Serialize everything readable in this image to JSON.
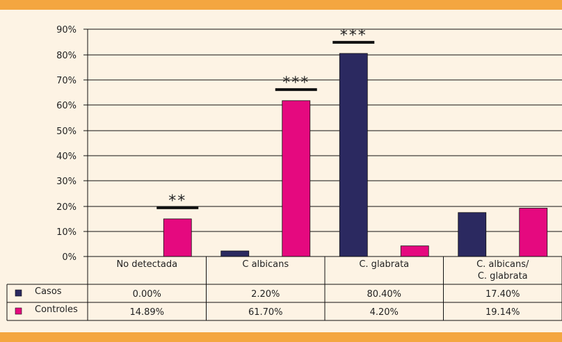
{
  "colors": {
    "casos": "#2b2960",
    "controles": "#e5097f",
    "band": "#f4a640",
    "background": "#fdf3e4"
  },
  "chart_data": {
    "type": "bar",
    "categories": [
      "No detectada",
      "C albicans",
      "C. glabrata",
      "C. albicans/ C. glabrata"
    ],
    "category_lines": [
      [
        "No detectada"
      ],
      [
        "C albicans"
      ],
      [
        "C. glabrata"
      ],
      [
        "C. albicans/",
        "C. glabrata"
      ]
    ],
    "series": [
      {
        "name": "Casos",
        "values": [
          0.0,
          2.2,
          80.4,
          17.4
        ],
        "labels": [
          "0.00%",
          "2.20%",
          "80.40%",
          "17.40%"
        ],
        "color": "#2b2960"
      },
      {
        "name": "Controles",
        "values": [
          14.89,
          61.7,
          4.2,
          19.14
        ],
        "labels": [
          "14.89%",
          "61.70%",
          "4.20%",
          "19.14%"
        ],
        "color": "#e5097f"
      }
    ],
    "ylim": [
      0,
      90
    ],
    "yticks": [
      "0%",
      "10%",
      "20%",
      "30%",
      "40%",
      "50%",
      "60%",
      "70%",
      "80%",
      "90%"
    ],
    "grid": true,
    "legend": "data-table",
    "significance": [
      {
        "category": "No detectada",
        "marker": "**"
      },
      {
        "category": "C albicans",
        "marker": "***"
      },
      {
        "category": "C. glabrata",
        "marker": "***"
      }
    ]
  }
}
